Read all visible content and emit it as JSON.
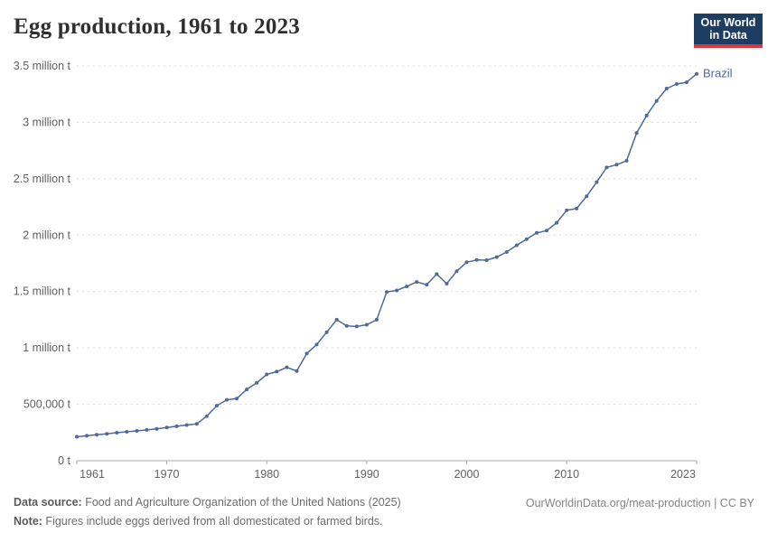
{
  "header": {
    "title": "Egg production, 1961 to 2023"
  },
  "logo": {
    "line1": "Our World",
    "line2": "in Data",
    "bg_color": "#1d3d63",
    "accent_color": "#d8373e"
  },
  "chart_data": {
    "type": "line",
    "title": "Egg production, 1961 to 2023",
    "unit": "t",
    "grid": "horizontal-dashed",
    "legend_position": "end-of-line-label",
    "ylim": [
      0,
      3500000
    ],
    "y_ticks": [
      {
        "value": 0,
        "label": "0 t"
      },
      {
        "value": 500000,
        "label": "500,000 t"
      },
      {
        "value": 1000000,
        "label": "1 million t"
      },
      {
        "value": 1500000,
        "label": "1.5 million t"
      },
      {
        "value": 2000000,
        "label": "2 million t"
      },
      {
        "value": 2500000,
        "label": "2.5 million t"
      },
      {
        "value": 3000000,
        "label": "3 million t"
      },
      {
        "value": 3500000,
        "label": "3.5 million t"
      }
    ],
    "x_ticks": [
      1961,
      1970,
      1980,
      1990,
      2000,
      2010,
      2023
    ],
    "x": [
      1961,
      1962,
      1963,
      1964,
      1965,
      1966,
      1967,
      1968,
      1969,
      1970,
      1971,
      1972,
      1973,
      1974,
      1975,
      1976,
      1977,
      1978,
      1979,
      1980,
      1981,
      1982,
      1983,
      1984,
      1985,
      1986,
      1987,
      1988,
      1989,
      1990,
      1991,
      1992,
      1993,
      1994,
      1995,
      1996,
      1997,
      1998,
      1999,
      2000,
      2001,
      2002,
      2003,
      2004,
      2005,
      2006,
      2007,
      2008,
      2009,
      2010,
      2011,
      2012,
      2013,
      2014,
      2015,
      2016,
      2017,
      2018,
      2019,
      2020,
      2021,
      2022,
      2023
    ],
    "series": [
      {
        "name": "Brazil",
        "color": "#4c6a9c",
        "values": [
          212000,
          221000,
          230000,
          239000,
          248000,
          256000,
          264000,
          273000,
          283000,
          294000,
          305000,
          316000,
          327000,
          395000,
          488000,
          540000,
          550000,
          632000,
          690000,
          765000,
          790000,
          828000,
          795000,
          950000,
          1030000,
          1140000,
          1250000,
          1195000,
          1190000,
          1205000,
          1250000,
          1495000,
          1510000,
          1545000,
          1585000,
          1560000,
          1655000,
          1570000,
          1680000,
          1760000,
          1780000,
          1778000,
          1805000,
          1850000,
          1910000,
          1965000,
          2020000,
          2040000,
          2110000,
          2220000,
          2235000,
          2345000,
          2470000,
          2600000,
          2625000,
          2660000,
          2905000,
          3060000,
          3190000,
          3300000,
          3340000,
          3355000,
          3430000
        ]
      }
    ]
  },
  "footer": {
    "source_label": "Data source:",
    "source_text": " Food and Agriculture Organization of the United Nations (2025)",
    "note_label": "Note:",
    "note_text": " Figures include eggs derived from all domesticated or farmed birds.",
    "credit": "OurWorldinData.org/meat-production | CC BY"
  }
}
